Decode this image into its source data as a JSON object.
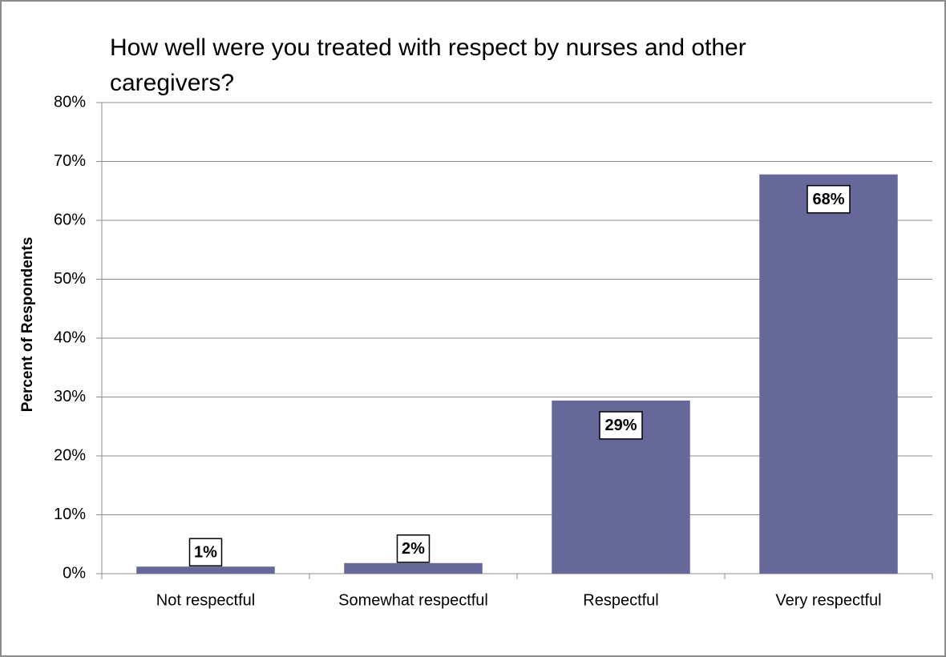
{
  "chart_data": {
    "type": "bar",
    "title": "How well were you treated with respect by nurses and other caregivers?",
    "y_label": "Percent of Respondents",
    "categories": [
      "Not respectful",
      "Somewhat respectful",
      "Respectful",
      "Very respectful"
    ],
    "values": [
      1.2,
      1.8,
      29.4,
      67.8
    ],
    "value_labels": [
      "1%",
      "2%",
      "29%",
      "68%"
    ],
    "color": "#67689a",
    "ylim": [
      0,
      80
    ],
    "yticks": [
      {
        "value": 0,
        "label": "0%"
      },
      {
        "value": 10,
        "label": "10%"
      },
      {
        "value": 20,
        "label": "20%"
      },
      {
        "value": 30,
        "label": "30%"
      },
      {
        "value": 40,
        "label": "40%"
      },
      {
        "value": 50,
        "label": "50%"
      },
      {
        "value": 60,
        "label": "60%"
      },
      {
        "value": 70,
        "label": "70%"
      },
      {
        "value": 80,
        "label": "80%"
      }
    ],
    "grid": true
  }
}
